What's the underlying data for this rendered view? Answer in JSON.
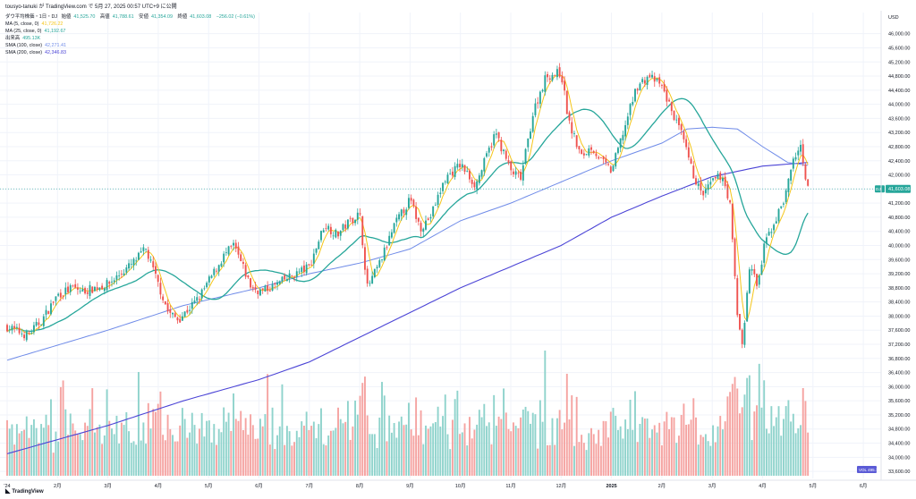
{
  "header": {
    "author_line": "tousyo-tanuki が TradingView.com で 5月 27, 2025 00:57 UTC+9 に公開"
  },
  "legend": {
    "symbol": "ダウ平均株価・1日・DJ",
    "ohlc": [
      {
        "label": "始値",
        "value": "41,525.70"
      },
      {
        "label": "高値",
        "value": "41,788.61"
      },
      {
        "label": "安値",
        "value": "41,354.09"
      },
      {
        "label": "終値",
        "value": "41,603.08"
      }
    ],
    "change": "−256.02 (−0.61%)",
    "indicators": [
      {
        "label": "MA (5, close, 0)",
        "value": "41,726.22",
        "color": "#f5c518"
      },
      {
        "label": "MA (25, close, 0)",
        "value": "41,192.67",
        "color": "#26a69a"
      },
      {
        "label": "出来高",
        "value": "495.13K",
        "color": "#26a69a"
      },
      {
        "label": "SMA (100, close)",
        "value": "42,271.41",
        "color": "#6f8be8"
      },
      {
        "label": "SMA (200, close)",
        "value": "42,346.83",
        "color": "#4b44d6"
      }
    ]
  },
  "branding": {
    "logo_text": "TradingView"
  },
  "chart_data": {
    "type": "candlestick",
    "currency": "USD",
    "ylim": [
      33400,
      46600
    ],
    "y_ticks": [
      "46,000.00",
      "45,600.00",
      "45,200.00",
      "44,800.00",
      "44,400.00",
      "44,000.00",
      "43,600.00",
      "43,200.00",
      "42,800.00",
      "42,400.00",
      "42,000.00",
      "41,600.00",
      "41,200.00",
      "40,800.00",
      "40,400.00",
      "40,000.00",
      "39,600.00",
      "39,200.00",
      "38,800.00",
      "38,400.00",
      "38,000.00",
      "37,600.00",
      "37,200.00",
      "36,800.00",
      "36,400.00",
      "36,000.00",
      "35,600.00",
      "35,200.00",
      "34,800.00",
      "34,400.00",
      "34,000.00",
      "33,600.00"
    ],
    "x_ticks": [
      "'24",
      "2月",
      "3月",
      "4月",
      "5月",
      "6月",
      "7月",
      "8月",
      "9月",
      "10月",
      "11月",
      "12月",
      "2025",
      "2月",
      "3月",
      "4月",
      "5月",
      "6月"
    ],
    "last_price_label": "41,603.08",
    "last_price_tag": "DJI",
    "volume_tag": "495.13K",
    "volume_tag_symbol": "VOL",
    "colors": {
      "up": "#26a69a",
      "down": "#ef5350",
      "up_vol": "#8fd3cc",
      "down_vol": "#f5a3a1",
      "ma5": "#f5c518",
      "ma25": "#26a69a",
      "sma100": "#6f8be8",
      "sma200": "#4b44d6",
      "grid": "#f0f3fa"
    },
    "anchors": [
      {
        "m": 0.0,
        "c": 37700
      },
      {
        "m": 0.4,
        "c": 37450
      },
      {
        "m": 0.7,
        "c": 37900
      },
      {
        "m": 1.0,
        "c": 38600
      },
      {
        "m": 1.3,
        "c": 38800
      },
      {
        "m": 1.5,
        "c": 38700
      },
      {
        "m": 2.0,
        "c": 38900
      },
      {
        "m": 2.5,
        "c": 39500
      },
      {
        "m": 2.75,
        "c": 39900
      },
      {
        "m": 2.95,
        "c": 39100
      },
      {
        "m": 3.2,
        "c": 38100
      },
      {
        "m": 3.4,
        "c": 37900
      },
      {
        "m": 3.8,
        "c": 38500
      },
      {
        "m": 4.3,
        "c": 39700
      },
      {
        "m": 4.5,
        "c": 40000
      },
      {
        "m": 4.85,
        "c": 38800
      },
      {
        "m": 5.05,
        "c": 38700
      },
      {
        "m": 5.3,
        "c": 38850
      },
      {
        "m": 5.6,
        "c": 39100
      },
      {
        "m": 6.0,
        "c": 39400
      },
      {
        "m": 6.3,
        "c": 40600
      },
      {
        "m": 6.55,
        "c": 40300
      },
      {
        "m": 6.8,
        "c": 40700
      },
      {
        "m": 7.0,
        "c": 40900
      },
      {
        "m": 7.15,
        "c": 38800
      },
      {
        "m": 7.4,
        "c": 39500
      },
      {
        "m": 7.7,
        "c": 40600
      },
      {
        "m": 8.0,
        "c": 41300
      },
      {
        "m": 8.2,
        "c": 40500
      },
      {
        "m": 8.4,
        "c": 40800
      },
      {
        "m": 8.7,
        "c": 41900
      },
      {
        "m": 9.0,
        "c": 42300
      },
      {
        "m": 9.3,
        "c": 41700
      },
      {
        "m": 9.7,
        "c": 43200
      },
      {
        "m": 10.0,
        "c": 42100
      },
      {
        "m": 10.2,
        "c": 41900
      },
      {
        "m": 10.45,
        "c": 43800
      },
      {
        "m": 10.7,
        "c": 44800
      },
      {
        "m": 11.0,
        "c": 44900
      },
      {
        "m": 11.15,
        "c": 43500
      },
      {
        "m": 11.4,
        "c": 42500
      },
      {
        "m": 11.6,
        "c": 42800
      },
      {
        "m": 11.8,
        "c": 42400
      },
      {
        "m": 12.0,
        "c": 42100
      },
      {
        "m": 12.25,
        "c": 43300
      },
      {
        "m": 12.5,
        "c": 44500
      },
      {
        "m": 12.75,
        "c": 44800
      },
      {
        "m": 13.0,
        "c": 44500
      },
      {
        "m": 13.2,
        "c": 43800
      },
      {
        "m": 13.4,
        "c": 43100
      },
      {
        "m": 13.6,
        "c": 42100
      },
      {
        "m": 13.8,
        "c": 41400
      },
      {
        "m": 14.0,
        "c": 41800
      },
      {
        "m": 14.2,
        "c": 42000
      },
      {
        "m": 14.35,
        "c": 41200
      },
      {
        "m": 14.5,
        "c": 38000
      },
      {
        "m": 14.6,
        "c": 37200
      },
      {
        "m": 14.75,
        "c": 39500
      },
      {
        "m": 14.9,
        "c": 38800
      },
      {
        "m": 15.05,
        "c": 40100
      },
      {
        "m": 15.25,
        "c": 40700
      },
      {
        "m": 15.45,
        "c": 41400
      },
      {
        "m": 15.6,
        "c": 42400
      },
      {
        "m": 15.75,
        "c": 42800
      },
      {
        "m": 15.85,
        "c": 41800
      },
      {
        "m": 15.9,
        "c": 41600
      }
    ],
    "sma100_anchors": [
      {
        "m": 0.0,
        "c": 36750
      },
      {
        "m": 2.0,
        "c": 37600
      },
      {
        "m": 3.5,
        "c": 38300
      },
      {
        "m": 5.0,
        "c": 38800
      },
      {
        "m": 6.0,
        "c": 39200
      },
      {
        "m": 7.0,
        "c": 39500
      },
      {
        "m": 8.0,
        "c": 39900
      },
      {
        "m": 9.0,
        "c": 40700
      },
      {
        "m": 10.0,
        "c": 41200
      },
      {
        "m": 11.0,
        "c": 41800
      },
      {
        "m": 12.0,
        "c": 42400
      },
      {
        "m": 13.0,
        "c": 42900
      },
      {
        "m": 13.5,
        "c": 43300
      },
      {
        "m": 14.0,
        "c": 43350
      },
      {
        "m": 14.5,
        "c": 43300
      },
      {
        "m": 15.0,
        "c": 42800
      },
      {
        "m": 15.5,
        "c": 42350
      },
      {
        "m": 15.9,
        "c": 42270
      }
    ],
    "sma200_anchors": [
      {
        "m": 0.0,
        "c": 34100
      },
      {
        "m": 2.0,
        "c": 34900
      },
      {
        "m": 3.5,
        "c": 35600
      },
      {
        "m": 5.0,
        "c": 36200
      },
      {
        "m": 6.0,
        "c": 36700
      },
      {
        "m": 7.0,
        "c": 37400
      },
      {
        "m": 8.0,
        "c": 38100
      },
      {
        "m": 9.0,
        "c": 38800
      },
      {
        "m": 10.0,
        "c": 39400
      },
      {
        "m": 11.0,
        "c": 40000
      },
      {
        "m": 12.0,
        "c": 40800
      },
      {
        "m": 13.0,
        "c": 41400
      },
      {
        "m": 14.0,
        "c": 41950
      },
      {
        "m": 15.0,
        "c": 42250
      },
      {
        "m": 15.9,
        "c": 42350
      }
    ]
  }
}
